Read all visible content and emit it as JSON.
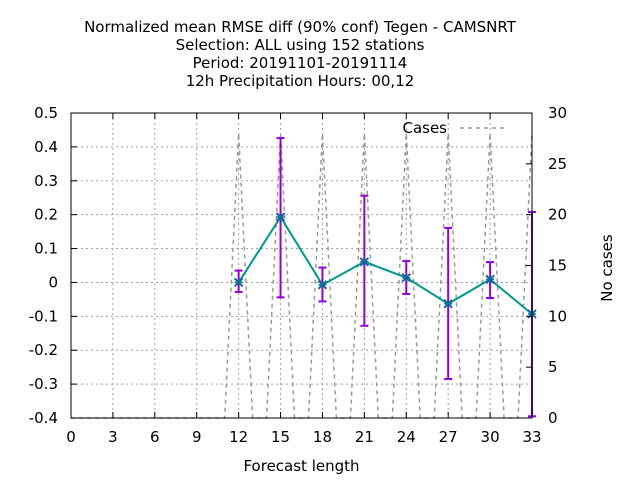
{
  "chart_data": {
    "type": "line",
    "title_lines": [
      "Normalized mean RMSE diff (90% conf) Tegen - CAMSNRT",
      "Selection: ALL using   152 stations",
      "Period: 20191101-20191114",
      "12h Precipitation   Hours:  00,12"
    ],
    "xlabel": "Forecast length",
    "y2label": "No cases",
    "xlim": [
      0,
      33
    ],
    "ylim": [
      -0.4,
      0.5
    ],
    "y2lim": [
      0,
      30
    ],
    "xticks": [
      0,
      3,
      6,
      9,
      12,
      15,
      18,
      21,
      24,
      27,
      30,
      33
    ],
    "yticks": [
      -0.4,
      -0.3,
      -0.2,
      -0.1,
      0,
      0.1,
      0.2,
      0.3,
      0.4,
      0.5
    ],
    "y2ticks": [
      0,
      5,
      10,
      15,
      20,
      25,
      30
    ],
    "grid": true,
    "legend": {
      "position": "top-right",
      "entries": [
        "Cases"
      ]
    },
    "series": [
      {
        "style": "line-with-errorbars",
        "color": "#00998a",
        "marker_color": "#0a6e96",
        "errorbar_color": "#9400d3",
        "x": [
          12,
          15,
          18,
          21,
          24,
          27,
          30,
          33
        ],
        "y": [
          0.0,
          0.193,
          -0.007,
          0.061,
          0.014,
          -0.063,
          0.009,
          -0.093
        ],
        "err_low": [
          -0.028,
          -0.044,
          -0.056,
          -0.128,
          -0.034,
          -0.285,
          -0.046,
          -0.395
        ],
        "err_high": [
          0.035,
          0.426,
          0.044,
          0.256,
          0.063,
          0.161,
          0.06,
          0.208
        ]
      },
      {
        "name": "Cases",
        "axis": "y2",
        "style": "dashed",
        "color": "#999999",
        "x": [
          0,
          10,
          11,
          12,
          13,
          14,
          15,
          16,
          17,
          18,
          19,
          20,
          21,
          22,
          23,
          24,
          25,
          26,
          27,
          28,
          29,
          30,
          31,
          32,
          33
        ],
        "y": [
          0,
          0,
          0,
          28,
          0,
          0,
          28,
          0,
          0,
          28,
          0,
          0,
          28,
          0,
          0,
          28,
          0,
          0,
          28,
          0,
          0,
          28,
          0,
          0,
          28
        ]
      }
    ]
  }
}
